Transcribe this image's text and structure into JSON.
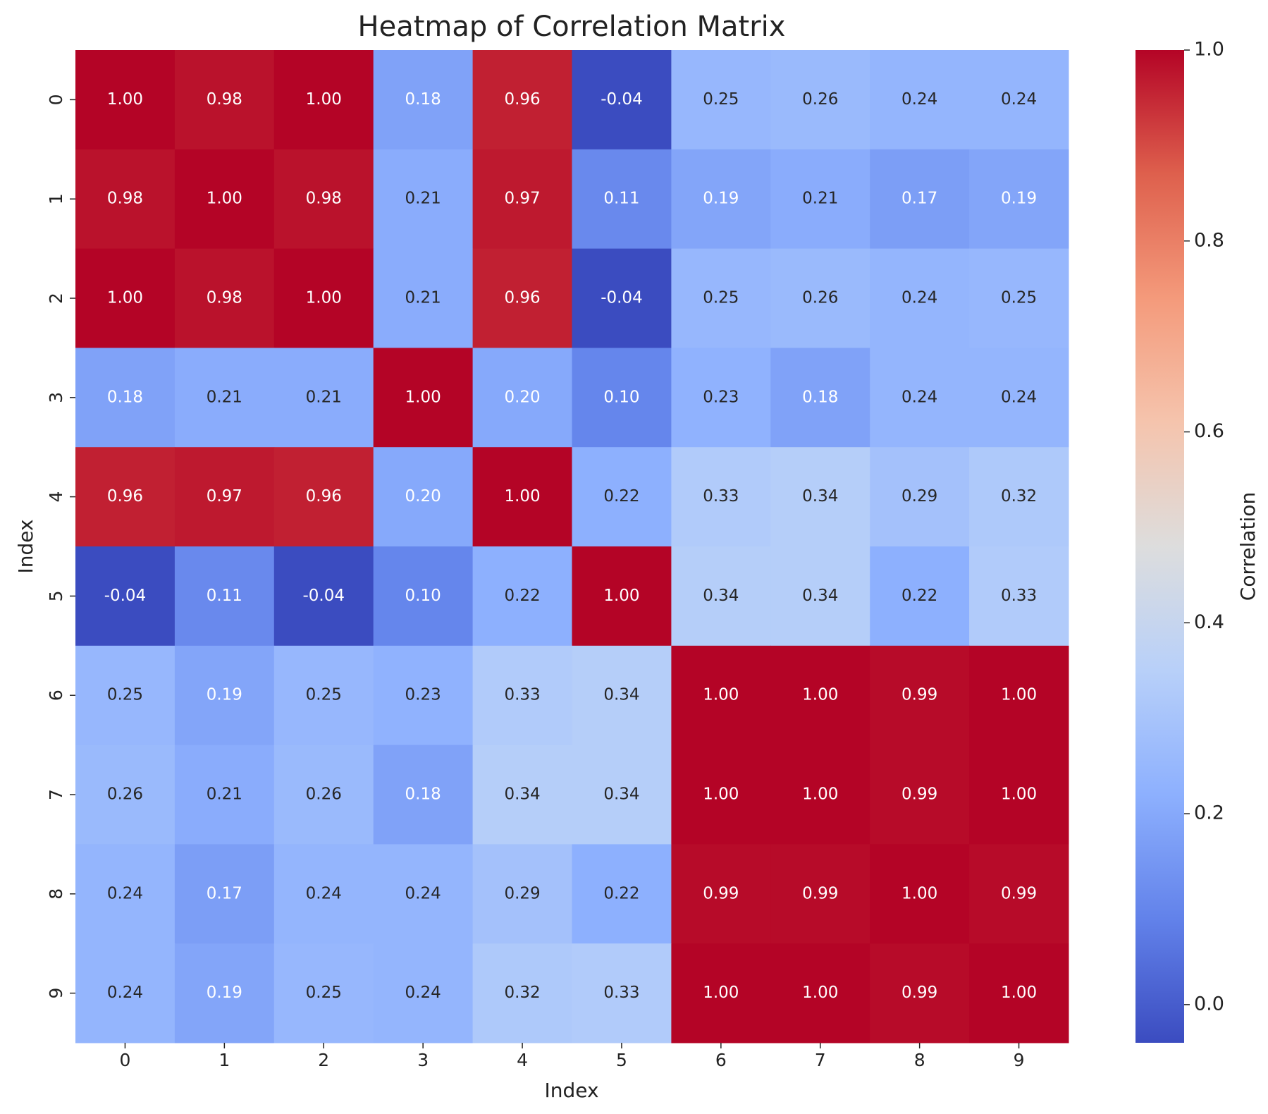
{
  "chart_data": {
    "type": "heatmap",
    "title": "Heatmap of Correlation Matrix",
    "x_label": "Index",
    "y_label": "Index",
    "x_categories": [
      "0",
      "1",
      "2",
      "3",
      "4",
      "5",
      "6",
      "7",
      "8",
      "9"
    ],
    "y_categories": [
      "0",
      "1",
      "2",
      "3",
      "4",
      "5",
      "6",
      "7",
      "8",
      "9"
    ],
    "colormap": "coolwarm",
    "values": [
      [
        1.0,
        0.98,
        1.0,
        0.18,
        0.96,
        -0.04,
        0.25,
        0.26,
        0.24,
        0.24
      ],
      [
        0.98,
        1.0,
        0.98,
        0.21,
        0.97,
        0.11,
        0.19,
        0.21,
        0.17,
        0.19
      ],
      [
        1.0,
        0.98,
        1.0,
        0.21,
        0.96,
        -0.04,
        0.25,
        0.26,
        0.24,
        0.25
      ],
      [
        0.18,
        0.21,
        0.21,
        1.0,
        0.2,
        0.1,
        0.23,
        0.18,
        0.24,
        0.24
      ],
      [
        0.96,
        0.97,
        0.96,
        0.2,
        1.0,
        0.22,
        0.33,
        0.34,
        0.29,
        0.32
      ],
      [
        -0.04,
        0.11,
        -0.04,
        0.1,
        0.22,
        1.0,
        0.34,
        0.34,
        0.22,
        0.33
      ],
      [
        0.25,
        0.19,
        0.25,
        0.23,
        0.33,
        0.34,
        1.0,
        1.0,
        0.99,
        1.0
      ],
      [
        0.26,
        0.21,
        0.26,
        0.18,
        0.34,
        0.34,
        1.0,
        1.0,
        0.99,
        1.0
      ],
      [
        0.24,
        0.17,
        0.24,
        0.24,
        0.29,
        0.22,
        0.99,
        0.99,
        1.0,
        0.99
      ],
      [
        0.24,
        0.19,
        0.25,
        0.24,
        0.32,
        0.33,
        1.0,
        1.0,
        0.99,
        1.0
      ]
    ],
    "value_labels": [
      [
        "1.00",
        "0.98",
        "1.00",
        "0.18",
        "0.96",
        "-0.04",
        "0.25",
        "0.26",
        "0.24",
        "0.24"
      ],
      [
        "0.98",
        "1.00",
        "0.98",
        "0.21",
        "0.97",
        "0.11",
        "0.19",
        "0.21",
        "0.17",
        "0.19"
      ],
      [
        "1.00",
        "0.98",
        "1.00",
        "0.21",
        "0.96",
        "-0.04",
        "0.25",
        "0.26",
        "0.24",
        "0.25"
      ],
      [
        "0.18",
        "0.21",
        "0.21",
        "1.00",
        "0.20",
        "0.10",
        "0.23",
        "0.18",
        "0.24",
        "0.24"
      ],
      [
        "0.96",
        "0.97",
        "0.96",
        "0.20",
        "1.00",
        "0.22",
        "0.33",
        "0.34",
        "0.29",
        "0.32"
      ],
      [
        "-0.04",
        "0.11",
        "-0.04",
        "0.10",
        "0.22",
        "1.00",
        "0.34",
        "0.34",
        "0.22",
        "0.33"
      ],
      [
        "0.25",
        "0.19",
        "0.25",
        "0.23",
        "0.33",
        "0.34",
        "1.00",
        "1.00",
        "0.99",
        "1.00"
      ],
      [
        "0.26",
        "0.21",
        "0.26",
        "0.18",
        "0.34",
        "0.34",
        "1.00",
        "1.00",
        "0.99",
        "1.00"
      ],
      [
        "0.24",
        "0.17",
        "0.24",
        "0.24",
        "0.29",
        "0.22",
        "0.99",
        "0.99",
        "1.00",
        "0.99"
      ],
      [
        "0.24",
        "0.19",
        "0.25",
        "0.24",
        "0.32",
        "0.33",
        "1.00",
        "1.00",
        "0.99",
        "1.00"
      ]
    ],
    "colorbar": {
      "label": "Correlation",
      "lim": [
        -0.04,
        1.0
      ],
      "ticks": [
        {
          "value": 0,
          "label": "0.0"
        },
        0.2,
        0.4,
        0.6,
        0.8,
        {
          "value": 1,
          "label": "1.0"
        }
      ]
    }
  }
}
